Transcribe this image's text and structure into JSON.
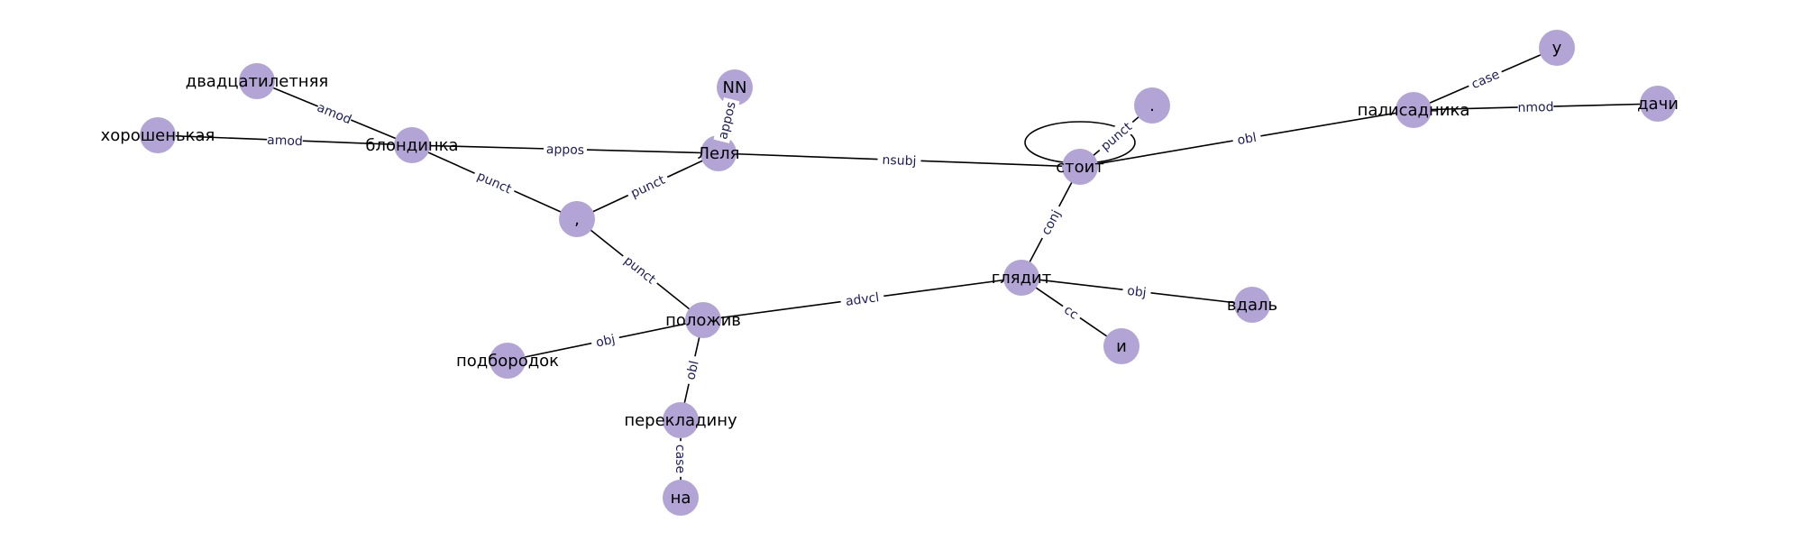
{
  "graph": {
    "node_color": "#b3a4d6",
    "edge_label_color": "#1c1c5e",
    "nodes": [
      {
        "id": "n1",
        "label": "двадцатилетняя"
      },
      {
        "id": "n2",
        "label": "хорошенькая"
      },
      {
        "id": "n3",
        "label": "блондинка"
      },
      {
        "id": "n4",
        "label": "NN"
      },
      {
        "id": "n5",
        "label": "Леля"
      },
      {
        "id": "n6",
        "label": ","
      },
      {
        "id": "n7",
        "label": "стоит"
      },
      {
        "id": "n8",
        "label": "."
      },
      {
        "id": "n9",
        "label": "у"
      },
      {
        "id": "n10",
        "label": "палисадника"
      },
      {
        "id": "n11",
        "label": "дачи"
      },
      {
        "id": "n12",
        "label": "глядит"
      },
      {
        "id": "n13",
        "label": "вдаль"
      },
      {
        "id": "n14",
        "label": "и"
      },
      {
        "id": "n15",
        "label": "положив"
      },
      {
        "id": "n16",
        "label": "подбородок"
      },
      {
        "id": "n17",
        "label": "перекладину"
      },
      {
        "id": "n18",
        "label": "на"
      }
    ],
    "edges": [
      {
        "id": "e1",
        "from": "n3",
        "to": "n1",
        "label": "amod"
      },
      {
        "id": "e2",
        "from": "n3",
        "to": "n2",
        "label": "amod"
      },
      {
        "id": "e3",
        "from": "n5",
        "to": "n3",
        "label": "appos"
      },
      {
        "id": "e4",
        "from": "n5",
        "to": "n4",
        "label": "appos"
      },
      {
        "id": "e5",
        "from": "n3",
        "to": "n6",
        "label": "punct"
      },
      {
        "id": "e6",
        "from": "n5",
        "to": "n6",
        "label": "punct"
      },
      {
        "id": "e7",
        "from": "n7",
        "to": "n5",
        "label": "nsubj"
      },
      {
        "id": "e8",
        "from": "n7",
        "to": "n8",
        "label": "punct"
      },
      {
        "id": "e9",
        "from": "n7",
        "to": "n10",
        "label": "obl"
      },
      {
        "id": "e10",
        "from": "n10",
        "to": "n9",
        "label": "case"
      },
      {
        "id": "e11",
        "from": "n10",
        "to": "n11",
        "label": "nmod"
      },
      {
        "id": "e12",
        "from": "n7",
        "to": "n12",
        "label": "conj"
      },
      {
        "id": "e13",
        "from": "n12",
        "to": "n13",
        "label": "obj"
      },
      {
        "id": "e14",
        "from": "n12",
        "to": "n14",
        "label": "cc"
      },
      {
        "id": "e15",
        "from": "n12",
        "to": "n15",
        "label": "advcl"
      },
      {
        "id": "e16",
        "from": "n15",
        "to": "n6",
        "label": "punct"
      },
      {
        "id": "e17",
        "from": "n15",
        "to": "n16",
        "label": "obj"
      },
      {
        "id": "e18",
        "from": "n15",
        "to": "n17",
        "label": "obl"
      },
      {
        "id": "e19",
        "from": "n17",
        "to": "n18",
        "label": "case"
      }
    ]
  }
}
